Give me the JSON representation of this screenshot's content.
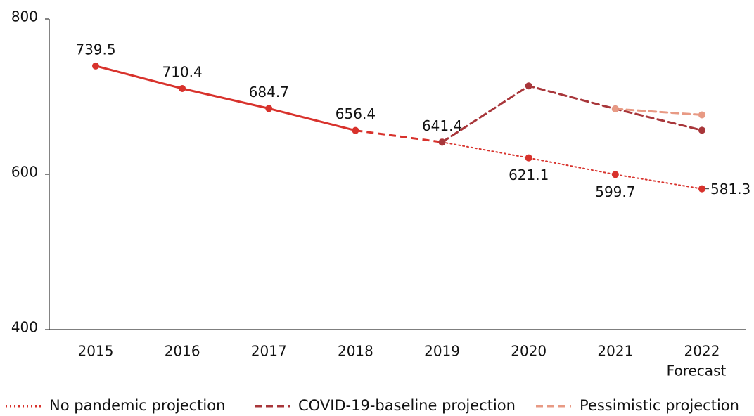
{
  "chart_data": {
    "type": "line",
    "categories": [
      "2015",
      "2016",
      "2017",
      "2018",
      "2019",
      "2020",
      "2021",
      "2022"
    ],
    "forecast_label": "Forecast",
    "ylim": [
      400,
      800
    ],
    "yticks": [
      400,
      600,
      800
    ],
    "series": [
      {
        "color": "#d8322c",
        "segment_styles": [
          "solid",
          "solid",
          "solid",
          "dashed"
        ],
        "values": [
          739.5,
          710.4,
          684.7,
          656.4,
          641.4,
          null,
          null,
          null
        ]
      },
      {
        "name": "No pandemic projection",
        "color": "#d8322c",
        "style": "dotted",
        "values": [
          null,
          null,
          null,
          null,
          641.4,
          621.1,
          599.7,
          581.3
        ]
      },
      {
        "name": "COVID-19-baseline projection",
        "color": "#a8363a",
        "style": "dashed",
        "values": [
          null,
          null,
          null,
          null,
          641.4,
          713.8,
          684.2,
          656.7
        ]
      },
      {
        "name": "Pessimistic projection",
        "color": "#e89a84",
        "style": "dashed",
        "values": [
          null,
          null,
          null,
          null,
          null,
          null,
          684.2,
          676.5
        ]
      }
    ]
  }
}
